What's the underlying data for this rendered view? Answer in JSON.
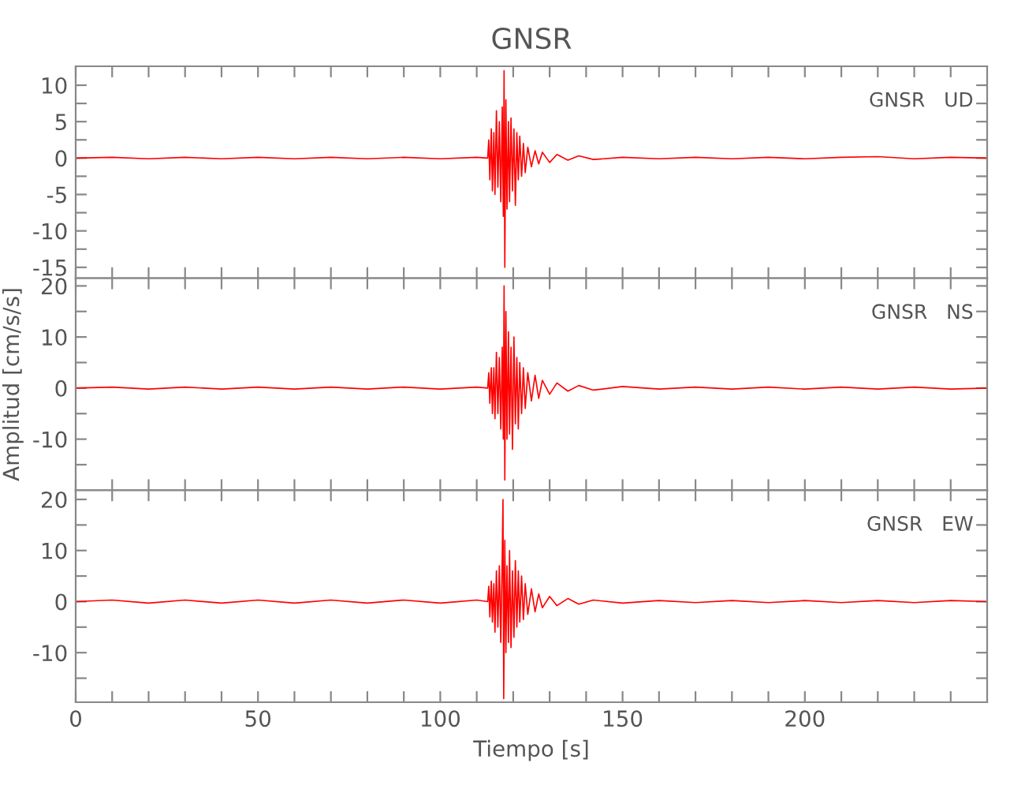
{
  "chart_data": [
    {
      "type": "line",
      "title": "GNSR",
      "annotations": [
        "GNSR   UD"
      ],
      "tick_labels": "y",
      "grid": false,
      "legend": false,
      "xlim": [
        0,
        250
      ],
      "xticks": [
        0,
        {
          "value": 10,
          "label": null
        },
        {
          "value": 20,
          "label": null
        },
        {
          "value": 30,
          "label": null
        },
        {
          "value": 40,
          "label": null
        },
        50,
        {
          "value": 60,
          "label": null
        },
        {
          "value": 70,
          "label": null
        },
        {
          "value": 80,
          "label": null
        },
        {
          "value": 90,
          "label": null
        },
        100,
        {
          "value": 110,
          "label": null
        },
        {
          "value": 120,
          "label": null
        },
        {
          "value": 130,
          "label": null
        },
        {
          "value": 140,
          "label": null
        },
        150,
        {
          "value": 160,
          "label": null
        },
        {
          "value": 170,
          "label": null
        },
        {
          "value": 180,
          "label": null
        },
        {
          "value": 190,
          "label": null
        },
        200,
        {
          "value": 210,
          "label": null
        },
        {
          "value": 220,
          "label": null
        },
        {
          "value": 230,
          "label": null
        },
        {
          "value": 240,
          "label": null
        }
      ],
      "ylim": [
        -16.5,
        12.6
      ],
      "yticks": [
        -15,
        {
          "value": -12.5,
          "label": null
        },
        -10,
        {
          "value": -7.5,
          "label": null
        },
        -5,
        {
          "value": -2.5,
          "label": null
        },
        0,
        {
          "value": 2.5,
          "label": null
        },
        5,
        {
          "value": 7.5,
          "label": null
        },
        10
      ],
      "series": [
        {
          "color": "#ff0000",
          "x": [
            0,
            10,
            20,
            30,
            40,
            50,
            60,
            70,
            80,
            90,
            100,
            110,
            113,
            113.3,
            113.6,
            114,
            114.3,
            114.7,
            115,
            115.4,
            115.8,
            116.2,
            116.6,
            117,
            117.3,
            117.5,
            117.7,
            118,
            118.3,
            118.7,
            119,
            119.4,
            119.8,
            120.2,
            120.6,
            121,
            121.4,
            121.8,
            122.3,
            122.8,
            123.3,
            124,
            125,
            126,
            127,
            128,
            130,
            132,
            135,
            138,
            142,
            150,
            160,
            170,
            180,
            190,
            200,
            210,
            220,
            230,
            240,
            250
          ],
          "values": [
            0,
            0.1,
            -0.1,
            0.1,
            -0.1,
            0.1,
            -0.1,
            0.1,
            -0.1,
            0.1,
            -0.1,
            0.1,
            0,
            2.5,
            -3,
            4,
            -4.5,
            3.5,
            -5,
            6.5,
            -4,
            5,
            -6,
            7,
            -8,
            12,
            -15,
            8,
            -7,
            5,
            -6,
            5.5,
            -4.5,
            4,
            -6.5,
            3.5,
            -3,
            3,
            -2.5,
            2,
            -2,
            1.5,
            -1.2,
            1,
            -0.8,
            0.8,
            -0.6,
            0.5,
            -0.3,
            0.3,
            -0.2,
            0.1,
            -0.1,
            0.1,
            -0.1,
            0.1,
            -0.1,
            0.1,
            0.2,
            -0.1,
            0.1,
            0
          ]
        }
      ]
    },
    {
      "type": "line",
      "ylabel": "Amplitud [cm/s/s]",
      "annotations": [
        "GNSR   NS"
      ],
      "tick_labels": "y",
      "grid": false,
      "legend": false,
      "xlim": [
        0,
        250
      ],
      "xticks": [
        0,
        {
          "value": 10,
          "label": null
        },
        {
          "value": 20,
          "label": null
        },
        {
          "value": 30,
          "label": null
        },
        {
          "value": 40,
          "label": null
        },
        50,
        {
          "value": 60,
          "label": null
        },
        {
          "value": 70,
          "label": null
        },
        {
          "value": 80,
          "label": null
        },
        {
          "value": 90,
          "label": null
        },
        100,
        {
          "value": 110,
          "label": null
        },
        {
          "value": 120,
          "label": null
        },
        {
          "value": 130,
          "label": null
        },
        {
          "value": 140,
          "label": null
        },
        150,
        {
          "value": 160,
          "label": null
        },
        {
          "value": 170,
          "label": null
        },
        {
          "value": 180,
          "label": null
        },
        {
          "value": 190,
          "label": null
        },
        200,
        {
          "value": 210,
          "label": null
        },
        {
          "value": 220,
          "label": null
        },
        {
          "value": 230,
          "label": null
        },
        {
          "value": 240,
          "label": null
        }
      ],
      "ylim": [
        -20,
        21.5
      ],
      "yticks": [
        {
          "value": -15,
          "label": null
        },
        -10,
        {
          "value": -5,
          "label": null
        },
        0,
        {
          "value": 5,
          "label": null
        },
        10,
        {
          "value": 15,
          "label": null
        },
        20
      ],
      "series": [
        {
          "color": "#ff0000",
          "x": [
            0,
            10,
            20,
            30,
            40,
            50,
            60,
            70,
            80,
            90,
            100,
            110,
            113,
            113.3,
            113.6,
            114,
            114.3,
            114.7,
            115,
            115.4,
            115.8,
            116.2,
            116.6,
            117,
            117.3,
            117.5,
            117.7,
            118,
            118.3,
            118.7,
            119,
            119.4,
            119.8,
            120.2,
            120.6,
            121,
            121.4,
            121.8,
            122.3,
            122.8,
            123.3,
            124,
            125,
            126,
            127,
            128,
            130,
            132,
            135,
            138,
            142,
            150,
            160,
            170,
            180,
            190,
            200,
            210,
            220,
            230,
            240,
            250
          ],
          "values": [
            0,
            0.2,
            -0.2,
            0.2,
            -0.2,
            0.2,
            -0.2,
            0.2,
            -0.2,
            0.2,
            -0.2,
            0.2,
            0,
            3,
            -3,
            4,
            -5,
            4,
            -6,
            7,
            -5,
            6,
            -8,
            8,
            -10,
            20,
            -18,
            15,
            -10,
            11,
            -9,
            8,
            -12,
            10,
            -7,
            6,
            -8,
            5,
            -5,
            4,
            -4,
            3,
            -2.5,
            2.5,
            -2,
            1.5,
            -1.2,
            1,
            -0.6,
            0.5,
            -0.4,
            0.3,
            -0.2,
            0.2,
            -0.2,
            0.2,
            -0.2,
            0.2,
            -0.2,
            0.2,
            -0.2,
            0
          ]
        }
      ]
    },
    {
      "type": "line",
      "xlabel": "Tiempo [s]",
      "annotations": [
        "GNSR   EW"
      ],
      "grid": false,
      "legend": false,
      "xlim": [
        0,
        250
      ],
      "xticks": [
        0,
        {
          "value": 10,
          "label": null
        },
        {
          "value": 20,
          "label": null
        },
        {
          "value": 30,
          "label": null
        },
        {
          "value": 40,
          "label": null
        },
        50,
        {
          "value": 60,
          "label": null
        },
        {
          "value": 70,
          "label": null
        },
        {
          "value": 80,
          "label": null
        },
        {
          "value": 90,
          "label": null
        },
        100,
        {
          "value": 110,
          "label": null
        },
        {
          "value": 120,
          "label": null
        },
        {
          "value": 130,
          "label": null
        },
        {
          "value": 140,
          "label": null
        },
        150,
        {
          "value": 160,
          "label": null
        },
        {
          "value": 170,
          "label": null
        },
        {
          "value": 180,
          "label": null
        },
        {
          "value": 190,
          "label": null
        },
        200,
        {
          "value": 210,
          "label": null
        },
        {
          "value": 220,
          "label": null
        },
        {
          "value": 230,
          "label": null
        },
        {
          "value": 240,
          "label": null
        }
      ],
      "ylim": [
        -19.7,
        21.8
      ],
      "yticks": [
        {
          "value": -15,
          "label": null
        },
        -10,
        {
          "value": -5,
          "label": null
        },
        0,
        {
          "value": 5,
          "label": null
        },
        10,
        {
          "value": 15,
          "label": null
        },
        20
      ],
      "series": [
        {
          "color": "#ff0000",
          "x": [
            0,
            10,
            20,
            30,
            40,
            50,
            60,
            70,
            80,
            90,
            100,
            110,
            113,
            113.3,
            113.6,
            114,
            114.3,
            114.7,
            115,
            115.4,
            115.8,
            116.2,
            116.6,
            117,
            117.2,
            117.4,
            117.7,
            118,
            118.3,
            118.7,
            119,
            119.4,
            119.8,
            120.2,
            120.6,
            121,
            121.4,
            121.8,
            122.3,
            122.8,
            123.3,
            124,
            125,
            126,
            127,
            128,
            130,
            132,
            135,
            138,
            142,
            150,
            160,
            170,
            180,
            190,
            200,
            210,
            220,
            230,
            240,
            250
          ],
          "values": [
            0,
            0.3,
            -0.3,
            0.3,
            -0.3,
            0.3,
            -0.3,
            0.3,
            -0.3,
            0.3,
            -0.3,
            0.3,
            0,
            3,
            -3,
            4,
            -4,
            3.5,
            -6,
            6,
            -5,
            7,
            -8,
            9,
            20,
            -19,
            12,
            -10,
            7,
            -8,
            10,
            -9,
            6,
            -7,
            8,
            -5,
            6,
            -4,
            5,
            -3.5,
            3.5,
            -2.5,
            2.5,
            -2,
            1.5,
            -1.2,
            1,
            -0.8,
            0.6,
            -0.5,
            0.3,
            -0.3,
            0.2,
            -0.2,
            0.2,
            -0.2,
            0.2,
            -0.2,
            0.2,
            -0.2,
            0.2,
            0
          ]
        }
      ]
    }
  ]
}
